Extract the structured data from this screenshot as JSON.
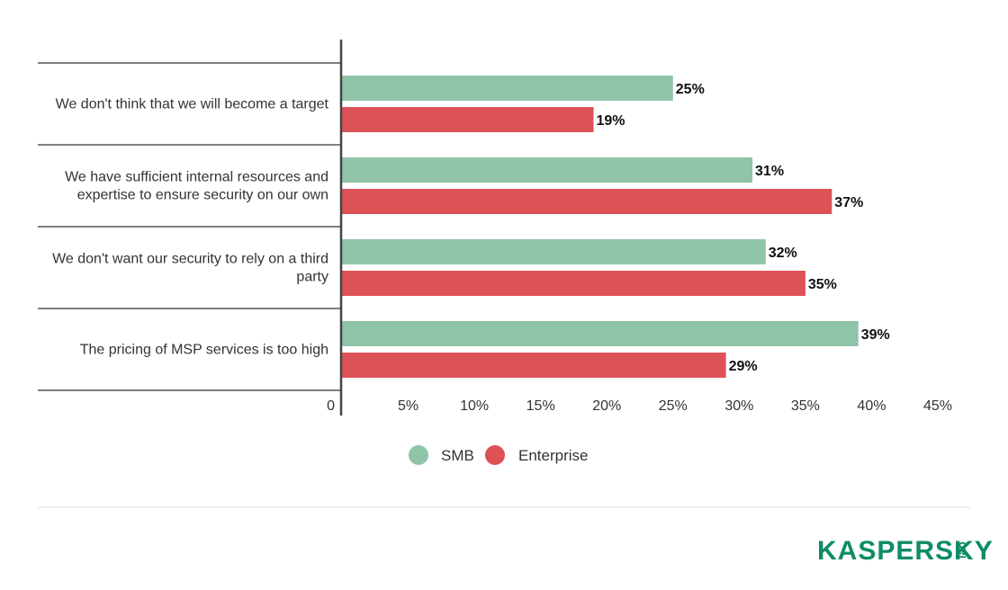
{
  "chart_data": {
    "type": "bar",
    "orientation": "horizontal",
    "categories": [
      [
        "We don't think that we will become a target"
      ],
      [
        "We have sufficient internal resources and",
        "expertise to ensure security on our own"
      ],
      [
        "We don't want our security to rely on a third",
        "party"
      ],
      [
        "The pricing of MSP services is too high"
      ]
    ],
    "series": [
      {
        "name": "SMB",
        "values": [
          25,
          31,
          32,
          39
        ],
        "labels": [
          "25%",
          "31%",
          "32%",
          "39%"
        ]
      },
      {
        "name": "Enterprise",
        "values": [
          19,
          37,
          35,
          29
        ],
        "labels": [
          "19%",
          "37%",
          "35%",
          "29%"
        ]
      }
    ],
    "xlim": [
      0,
      45
    ],
    "x_ticks": [
      0,
      5,
      10,
      15,
      20,
      25,
      30,
      35,
      40,
      45
    ],
    "x_tick_labels": [
      "0",
      "5%",
      "10%",
      "15%",
      "20%",
      "25%",
      "30%",
      "35%",
      "40%",
      "45%"
    ],
    "legend_position": "bottom-center",
    "grid": false
  },
  "colors": {
    "smb": "#8fc4a9",
    "enterprise": "#dd5257",
    "axis": "#444444",
    "separator": "#555555",
    "brand": "#0e8c67"
  },
  "logo": {
    "brand": "KASPERSKY",
    "sub": "lab"
  }
}
